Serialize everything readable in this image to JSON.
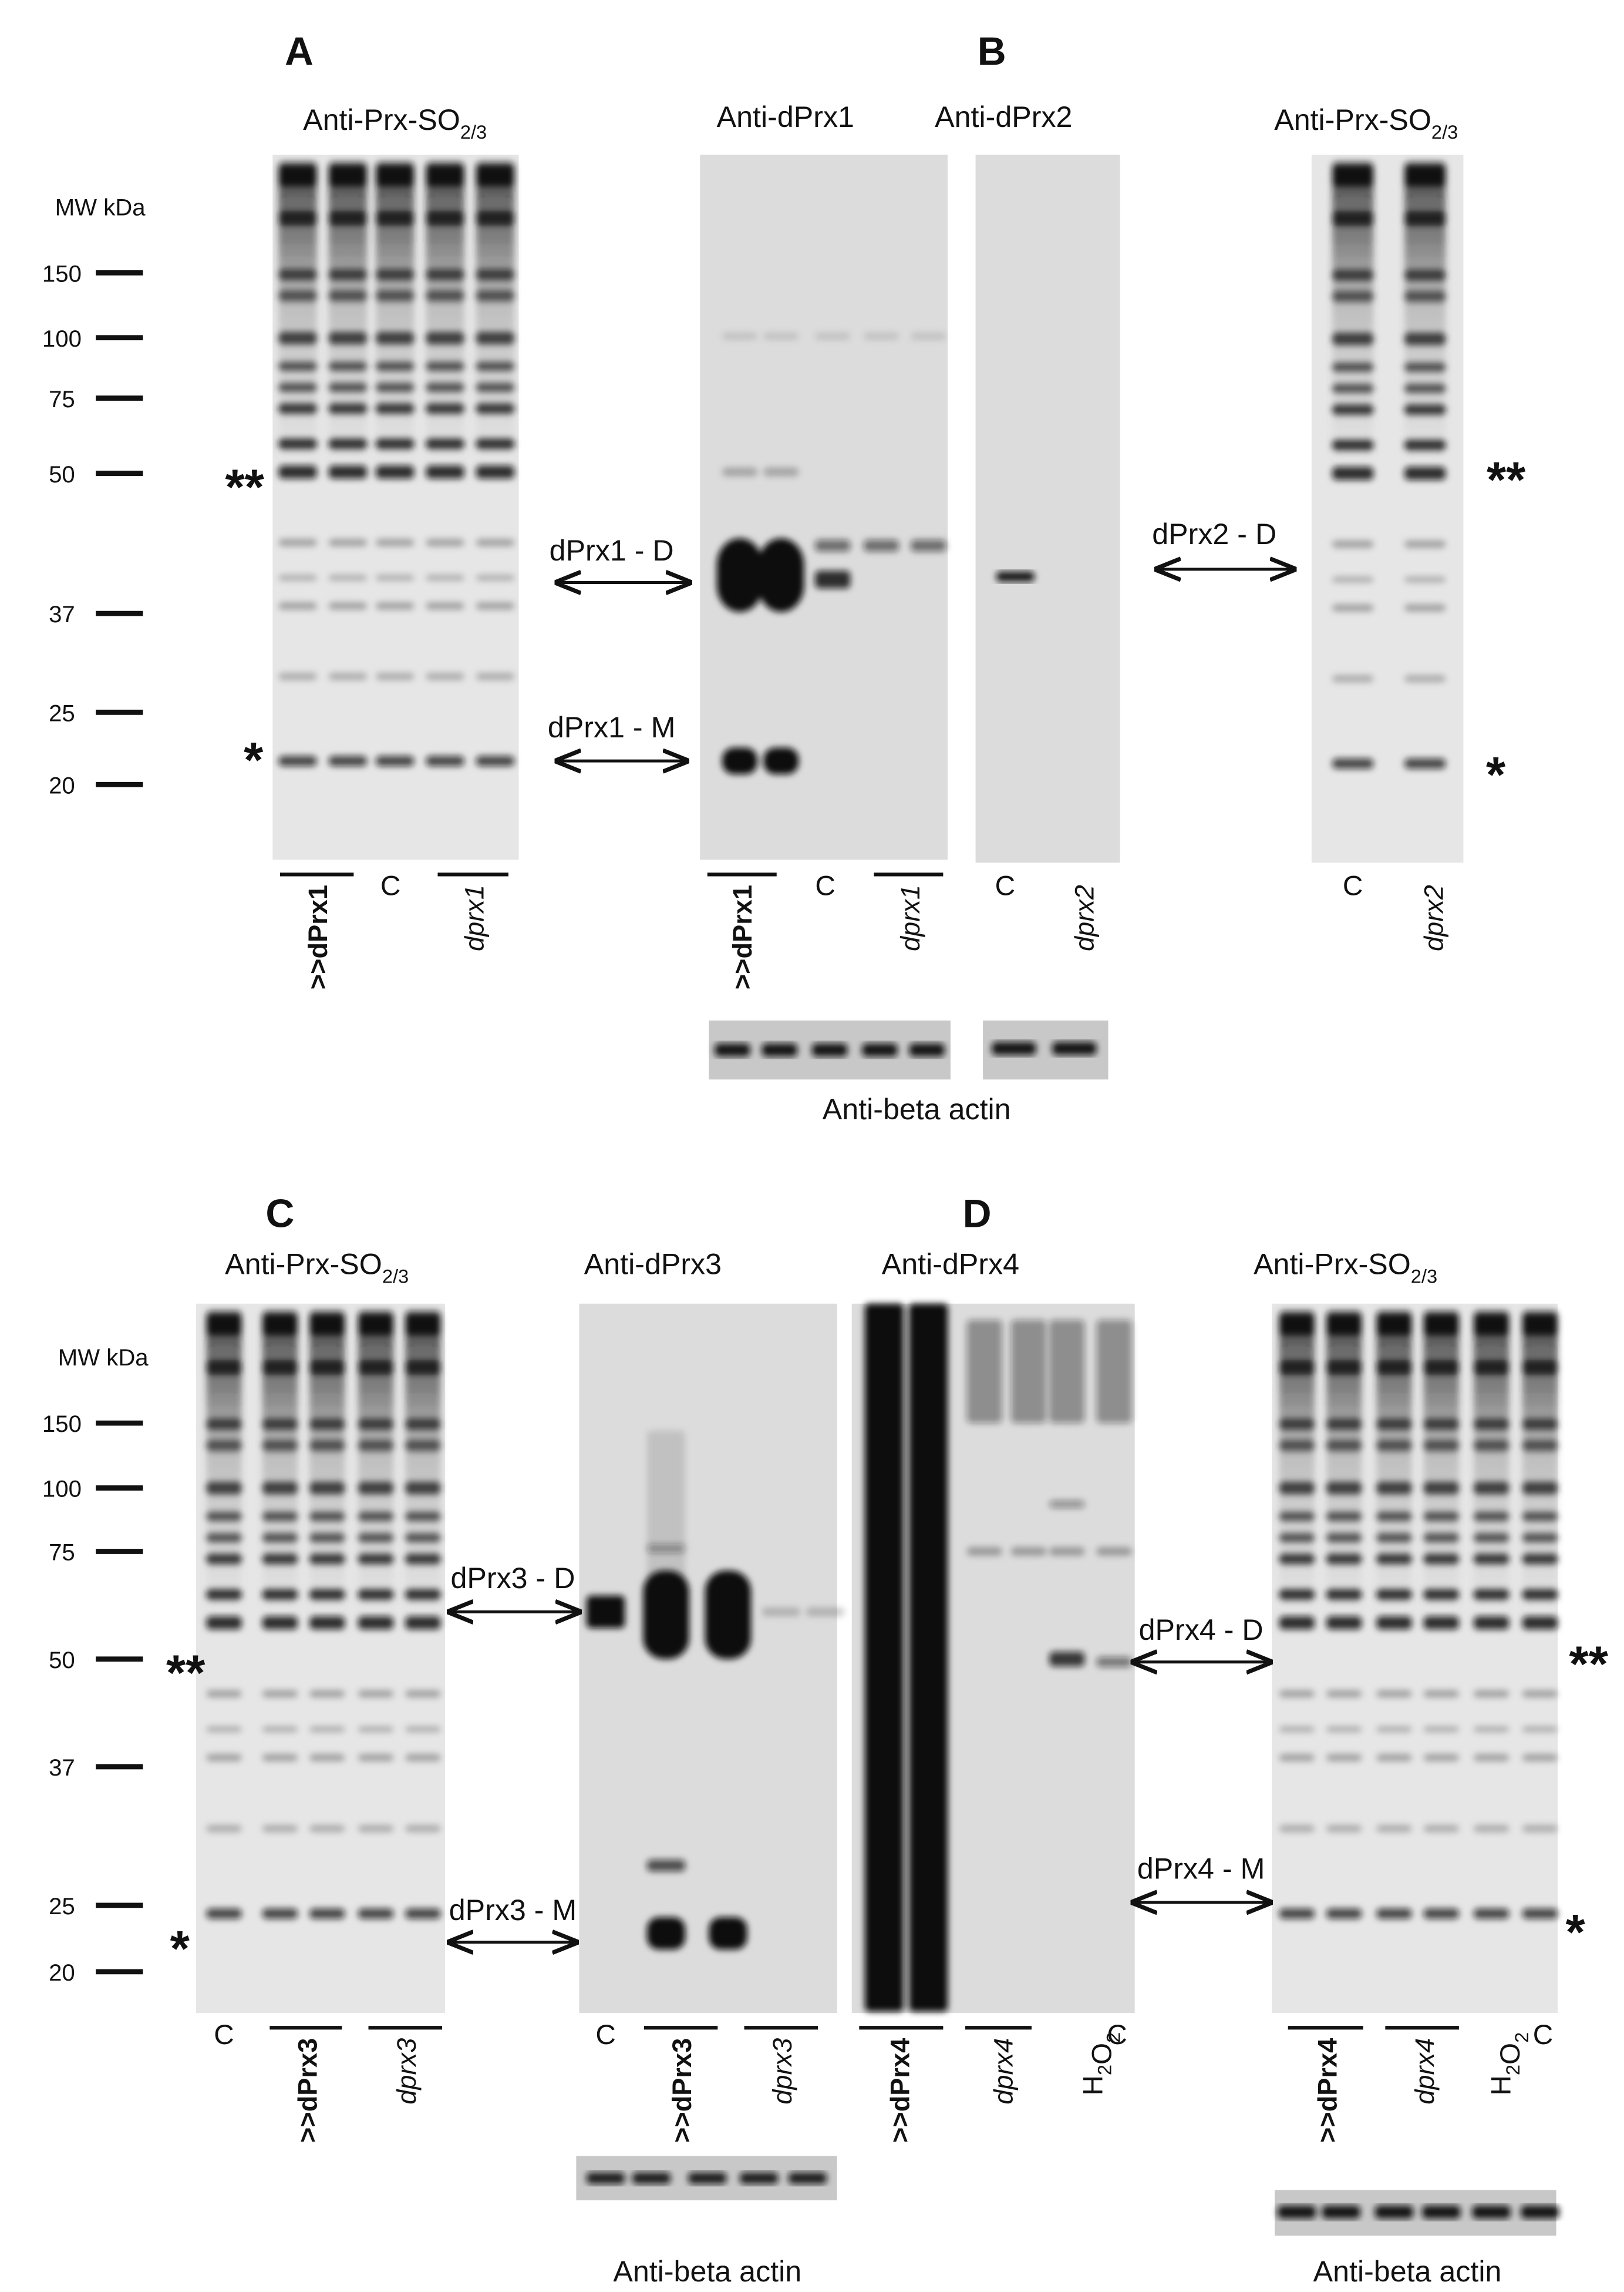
{
  "panel_labels": [
    "A",
    "B",
    "C",
    "D"
  ],
  "top": {
    "mw_header": "MW kDa",
    "mw_markers": [
      "150",
      "100",
      "75",
      "50",
      "37",
      "25",
      "20"
    ],
    "titles": [
      {
        "main": "Anti-Prx-SO",
        "sub": "2/3"
      },
      {
        "main": "Anti-dPrx1"
      },
      {
        "main": "Anti-dPrx2"
      },
      {
        "main": "Anti-Prx-SO",
        "sub": "2/3"
      }
    ],
    "asterisks": [
      "**",
      "*",
      "**",
      "*"
    ],
    "arrows": [
      "dPrx1 - D",
      "dPrx1 - M",
      "dPrx2 - D"
    ],
    "lanes": [
      ">>dPrx1",
      "C",
      "dprx1",
      ">>dPrx1",
      "C",
      "dprx1",
      "C",
      "dprx2",
      "C",
      "dprx2"
    ],
    "loading": "Anti-beta actin"
  },
  "bottom": {
    "mw_header": "MW kDa",
    "mw_markers": [
      "150",
      "100",
      "75",
      "50",
      "37",
      "25",
      "20"
    ],
    "titles": [
      {
        "main": "Anti-Prx-SO",
        "sub": "2/3"
      },
      {
        "main": "Anti-dPrx3"
      },
      {
        "main": "Anti-dPrx4"
      },
      {
        "main": "Anti-Prx-SO",
        "sub": "2/3"
      }
    ],
    "asterisks": [
      "**",
      "*",
      "**",
      "*"
    ],
    "arrows": [
      "dPrx3 - D",
      "dPrx3 - M",
      "dPrx4 - D",
      "dPrx4 - M"
    ],
    "lanes": [
      "C",
      ">>dPrx3",
      "dprx3",
      "C",
      ">>dPrx3",
      "dprx3",
      ">>dPrx4",
      "dprx4",
      {
        "parts": [
          "H",
          "2",
          "O",
          "2"
        ]
      },
      "C",
      ">>dPrx4",
      "dprx4",
      {
        "parts": [
          "H",
          "2",
          "O",
          "2"
        ]
      },
      "C"
    ],
    "loading": [
      "Anti-beta actin",
      "Anti-beta actin"
    ]
  }
}
